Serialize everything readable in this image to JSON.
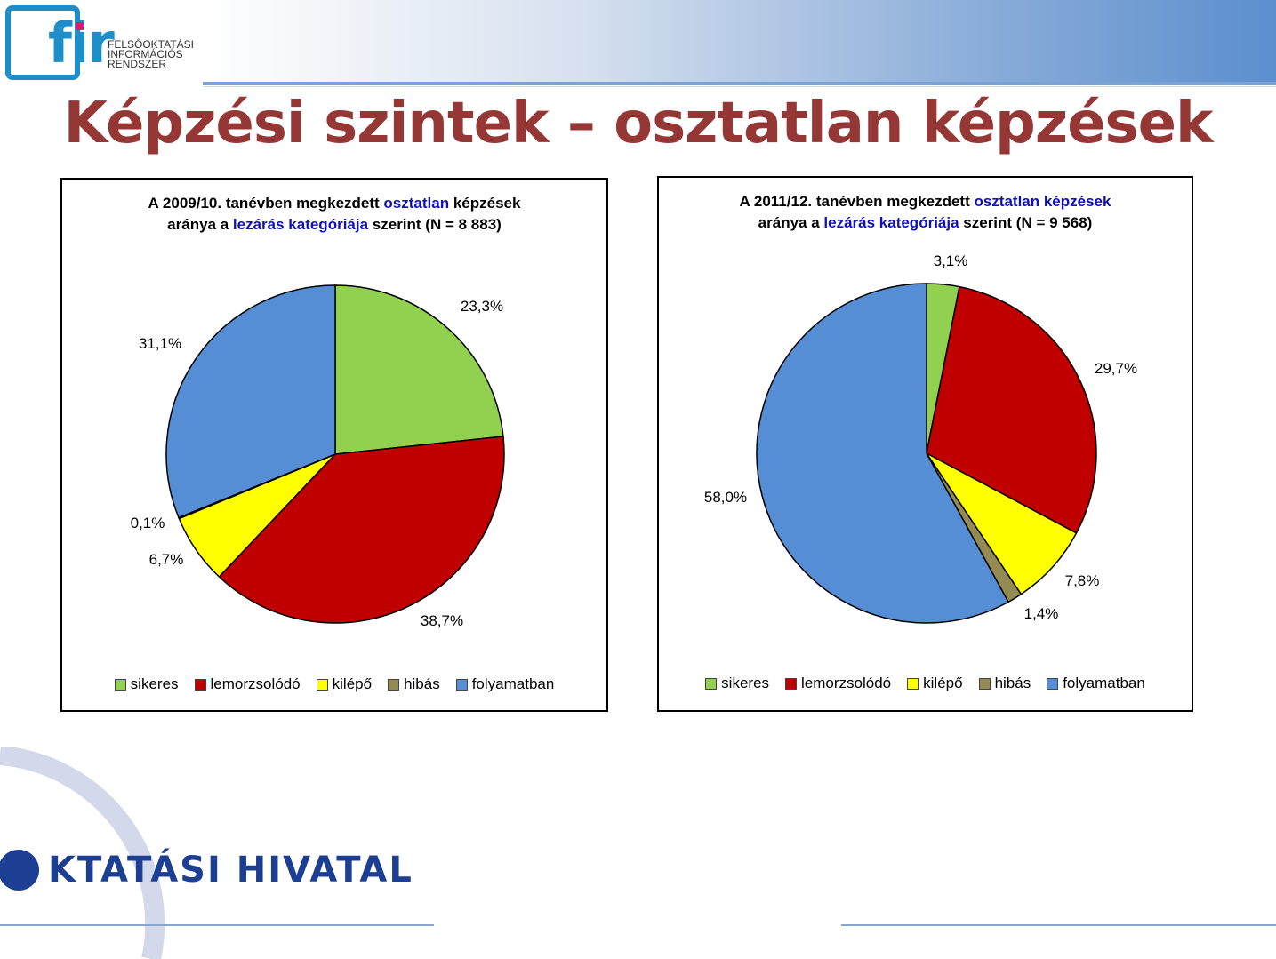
{
  "logo": {
    "letters": "fir",
    "line1": "FELSŐOKTATÁSI",
    "line2": "INFORMÁCIÓS",
    "line3": "RENDSZER"
  },
  "page_title": "Képzési szintek – osztatlan képzések",
  "footer": {
    "logo_text": "KTATÁSI HIVATAL"
  },
  "colors": {
    "sikeres": "#92d050",
    "lemorzsolodo": "#c00000",
    "kilepo": "#ffff00",
    "hibas": "#948a54",
    "folyamatban": "#558ed5",
    "title": "#953735",
    "highlight": "#1010b8"
  },
  "chart_data": [
    {
      "type": "pie",
      "title_line1": {
        "pre": "A 2009/10. tanévben megkezdett ",
        "hl": "osztatlan",
        "post": " képzések"
      },
      "title_line2": {
        "pre": "aránya a ",
        "hl": "lezárás kategóriája",
        "post": " szerint  (N = 8 883)"
      },
      "categories": [
        "sikeres",
        "lemorzsolódó",
        "kilépő",
        "hibás",
        "folyamatban"
      ],
      "values": [
        23.3,
        38.7,
        6.7,
        0.1,
        31.1
      ],
      "labels": [
        "23,3%",
        "38,7%",
        "6,7%",
        "0,1%",
        "31,1%"
      ],
      "legend": "bottom"
    },
    {
      "type": "pie",
      "title_line1": {
        "pre": "A 2011/12. tanévben megkezdett ",
        "hl": "osztatlan képzések",
        "post": ""
      },
      "title_line2": {
        "pre": "aránya a ",
        "hl": "lezárás kategóriája",
        "post": " szerint  (N = 9 568)"
      },
      "categories": [
        "sikeres",
        "lemorzsolódó",
        "kilépő",
        "hibás",
        "folyamatban"
      ],
      "values": [
        3.1,
        29.7,
        7.8,
        1.4,
        58.0
      ],
      "labels": [
        "3,1%",
        "29,7%",
        "7,8%",
        "1,4%",
        "58,0%"
      ],
      "legend": "bottom"
    }
  ]
}
